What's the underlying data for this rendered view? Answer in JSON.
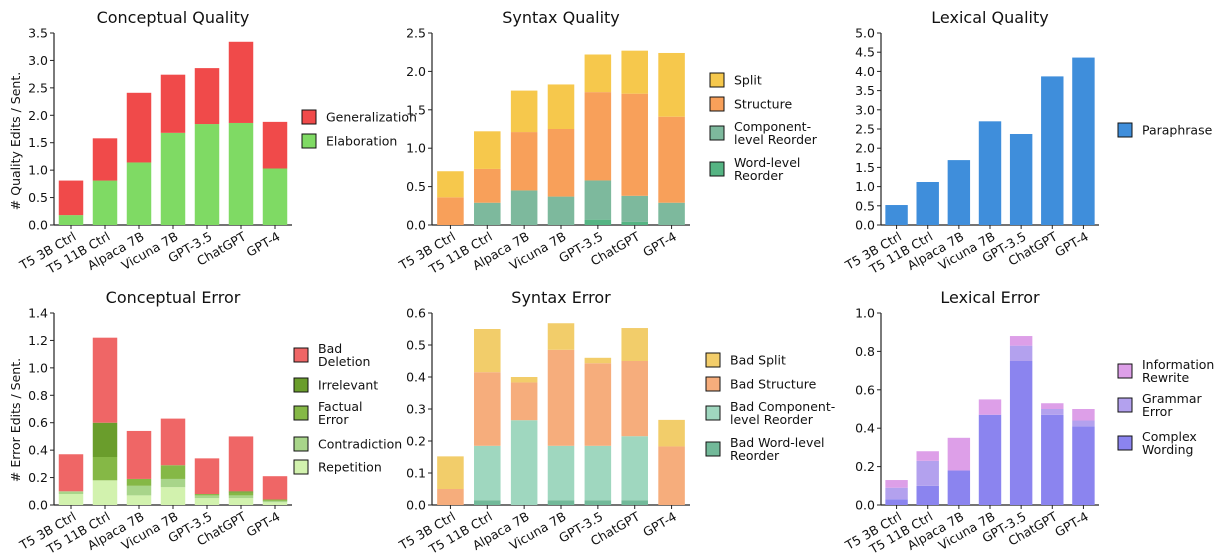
{
  "colors": {
    "red": "#f04a4a",
    "green": "#7fda64",
    "split_yellow": "#f6c84c",
    "structure_orange": "#f8a05a",
    "component_teal": "#7db99d",
    "word_green": "#55b483",
    "paraphrase_blue": "#3f8edb",
    "bad_deletion": "#ef6666",
    "irrelevant": "#6a9d2c",
    "factual": "#85b846",
    "contradiction": "#a8d58a",
    "repetition": "#d2f2ae",
    "bad_split": "#f2cd6a",
    "bad_structure": "#f6ad7c",
    "bad_component": "#9fd7bf",
    "bad_word": "#72b999",
    "info_rewrite": "#dd9fe8",
    "grammar": "#b3a1ee",
    "complex": "#8b84ef"
  },
  "row_ylabels": [
    "# Quality Edits / Sent.",
    "# Error Edits / Sent."
  ],
  "chart_data": [
    {
      "type": "bar",
      "stacked": true,
      "title": "Conceptual Quality",
      "categories": [
        "T5 3B Ctrl",
        "T5 11B Ctrl",
        "Alpaca 7B",
        "Vicuna 7B",
        "GPT-3.5",
        "ChatGPT",
        "GPT-4"
      ],
      "ylim": [
        0,
        3.5
      ],
      "yticks": [
        "0.0",
        "0.5",
        "1.0",
        "1.5",
        "2.0",
        "2.5",
        "3.0",
        "3.5"
      ],
      "series": [
        {
          "name": "Elaboration",
          "color_key": "green",
          "values": [
            0.18,
            0.81,
            1.14,
            1.68,
            1.84,
            1.86,
            1.03
          ]
        },
        {
          "name": "Generalization",
          "color_key": "red",
          "values": [
            0.63,
            0.77,
            1.27,
            1.06,
            1.02,
            1.48,
            0.85
          ]
        }
      ],
      "legend": [
        "Generalization",
        "Elaboration"
      ]
    },
    {
      "type": "bar",
      "stacked": true,
      "title": "Syntax Quality",
      "categories": [
        "T5 3B Ctrl",
        "T5 11B Ctrl",
        "Alpaca 7B",
        "Vicuna 7B",
        "GPT-3.5",
        "ChatGPT",
        "GPT-4"
      ],
      "ylim": [
        0,
        2.5
      ],
      "yticks": [
        "0.0",
        "0.5",
        "1.0",
        "1.5",
        "2.0",
        "2.5"
      ],
      "series": [
        {
          "name": "Word-level Reorder",
          "color_key": "word_green",
          "values": [
            0.0,
            0.0,
            0.0,
            0.0,
            0.07,
            0.04,
            0.0
          ]
        },
        {
          "name": "Component-level Reorder",
          "color_key": "component_teal",
          "values": [
            0.0,
            0.29,
            0.45,
            0.37,
            0.51,
            0.34,
            0.29
          ]
        },
        {
          "name": "Structure",
          "color_key": "structure_orange",
          "values": [
            0.36,
            0.44,
            0.76,
            0.88,
            1.15,
            1.33,
            1.12
          ]
        },
        {
          "name": "Split",
          "color_key": "split_yellow",
          "values": [
            0.34,
            0.49,
            0.54,
            0.58,
            0.49,
            0.56,
            0.83
          ]
        }
      ],
      "legend": [
        "Split",
        "Structure",
        "Component-\nlevel Reorder",
        "Word-level\nReorder"
      ]
    },
    {
      "type": "bar",
      "stacked": true,
      "title": "Lexical Quality",
      "categories": [
        "T5 3B Ctrl",
        "T5 11B Ctrl",
        "Alpaca 7B",
        "Vicuna 7B",
        "GPT-3.5",
        "ChatGPT",
        "GPT-4"
      ],
      "ylim": [
        0,
        5.0
      ],
      "yticks": [
        "0.0",
        "0.5",
        "1.0",
        "1.5",
        "2.0",
        "2.5",
        "3.0",
        "3.5",
        "4.0",
        "4.5",
        "5.0"
      ],
      "series": [
        {
          "name": "Paraphrase",
          "color_key": "paraphrase_blue",
          "values": [
            0.52,
            1.12,
            1.69,
            2.7,
            2.37,
            3.87,
            4.36
          ]
        }
      ],
      "legend": [
        "Paraphrase"
      ]
    },
    {
      "type": "bar",
      "stacked": true,
      "title": "Conceptual Error",
      "categories": [
        "T5 3B Ctrl",
        "T5 11B Ctrl",
        "Alpaca 7B",
        "Vicuna 7B",
        "GPT-3.5",
        "ChatGPT",
        "GPT-4"
      ],
      "ylim": [
        0,
        1.4
      ],
      "yticks": [
        "0.0",
        "0.2",
        "0.4",
        "0.6",
        "0.8",
        "1.0",
        "1.2",
        "1.4"
      ],
      "series": [
        {
          "name": "Repetition",
          "color_key": "repetition",
          "values": [
            0.08,
            0.18,
            0.07,
            0.13,
            0.05,
            0.05,
            0.02
          ]
        },
        {
          "name": "Contradiction",
          "color_key": "contradiction",
          "values": [
            0.02,
            0.0,
            0.07,
            0.06,
            0.02,
            0.02,
            0.01
          ]
        },
        {
          "name": "Factual Error",
          "color_key": "factual",
          "values": [
            0.0,
            0.17,
            0.05,
            0.1,
            0.01,
            0.02,
            0.01
          ]
        },
        {
          "name": "Irrelevant",
          "color_key": "irrelevant",
          "values": [
            0.0,
            0.25,
            0.0,
            0.0,
            0.0,
            0.01,
            0.0
          ]
        },
        {
          "name": "Bad Deletion",
          "color_key": "bad_deletion",
          "values": [
            0.27,
            0.62,
            0.35,
            0.34,
            0.26,
            0.4,
            0.17
          ]
        }
      ],
      "legend": [
        "Bad\nDeletion",
        "Irrelevant",
        "Factual\nError",
        "Contradiction",
        "Repetition"
      ]
    },
    {
      "type": "bar",
      "stacked": true,
      "title": "Syntax Error",
      "categories": [
        "T5 3B Ctrl",
        "T5 11B Ctrl",
        "Alpaca 7B",
        "Vicuna 7B",
        "GPT-3.5",
        "ChatGPT",
        "GPT-4"
      ],
      "ylim": [
        0,
        0.6
      ],
      "yticks": [
        "0.0",
        "0.1",
        "0.2",
        "0.3",
        "0.4",
        "0.5",
        "0.6"
      ],
      "series": [
        {
          "name": "Bad Word-level Reorder",
          "color_key": "bad_word",
          "values": [
            0.0,
            0.015,
            0.0,
            0.015,
            0.015,
            0.015,
            0.0
          ]
        },
        {
          "name": "Bad Component-level Reorder",
          "color_key": "bad_component",
          "values": [
            0.0,
            0.17,
            0.265,
            0.17,
            0.17,
            0.2,
            0.0
          ]
        },
        {
          "name": "Bad Structure",
          "color_key": "bad_structure",
          "values": [
            0.05,
            0.23,
            0.118,
            0.3,
            0.258,
            0.235,
            0.183
          ]
        },
        {
          "name": "Bad Split",
          "color_key": "bad_split",
          "values": [
            0.102,
            0.135,
            0.017,
            0.083,
            0.017,
            0.103,
            0.083
          ]
        }
      ],
      "legend": [
        "Bad Split",
        "Bad Structure",
        "Bad Component-\nlevel Reorder",
        "Bad Word-level\nReorder"
      ]
    },
    {
      "type": "bar",
      "stacked": true,
      "title": "Lexical Error",
      "categories": [
        "T5 3B Ctrl",
        "T5 11B Ctrl",
        "Alpaca 7B",
        "Vicuna 7B",
        "GPT-3.5",
        "ChatGPT",
        "GPT-4"
      ],
      "ylim": [
        0,
        1.0
      ],
      "yticks": [
        "0.0",
        "0.2",
        "0.4",
        "0.6",
        "0.8",
        "1.0"
      ],
      "series": [
        {
          "name": "Complex Wording",
          "color_key": "complex",
          "values": [
            0.03,
            0.1,
            0.18,
            0.47,
            0.75,
            0.47,
            0.41
          ]
        },
        {
          "name": "Grammar Error",
          "color_key": "grammar",
          "values": [
            0.06,
            0.13,
            0.0,
            0.0,
            0.08,
            0.03,
            0.03
          ]
        },
        {
          "name": "Information Rewrite",
          "color_key": "info_rewrite",
          "values": [
            0.04,
            0.05,
            0.17,
            0.08,
            0.05,
            0.03,
            0.06
          ]
        }
      ],
      "legend": [
        "Information\nRewrite",
        "Grammar\nError",
        "Complex\nWording"
      ]
    }
  ]
}
